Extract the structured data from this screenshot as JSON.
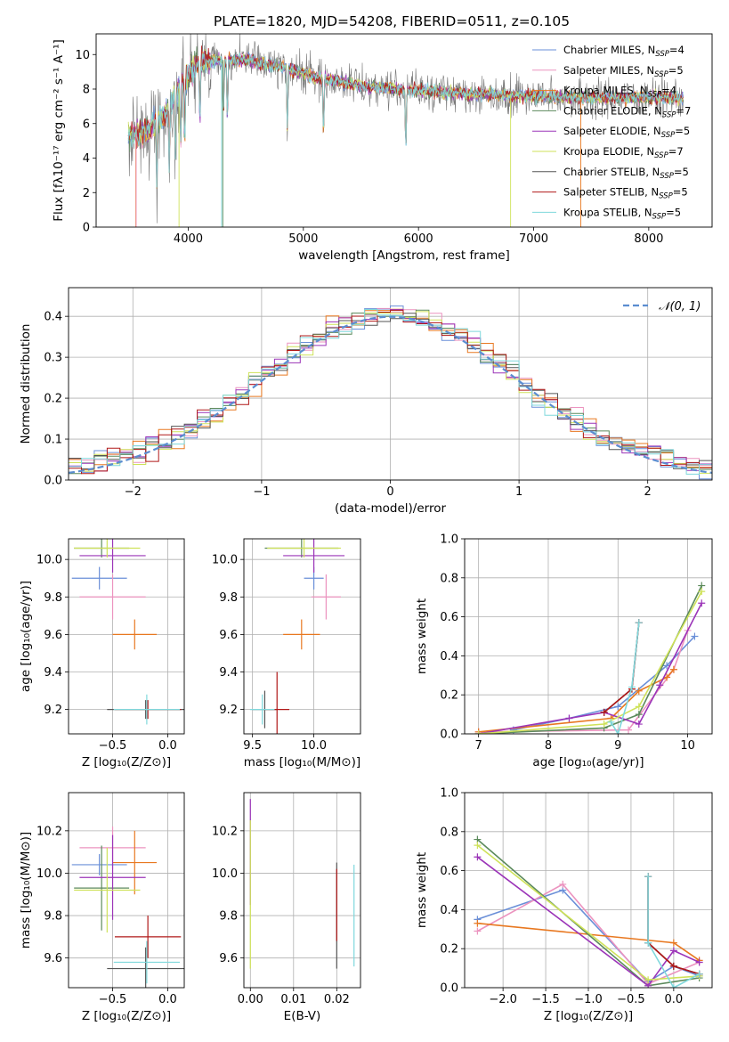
{
  "figure_title": "PLATE=1820, MJD=54208, FIBERID=0511, z=0.105",
  "legend_spectrum": [
    {
      "base": "Chabrier MILES, N",
      "n": "4",
      "color": "#6a8fd8"
    },
    {
      "base": "Salpeter MILES, N",
      "n": "5",
      "color": "#ec93bf"
    },
    {
      "base": "Kroupa MILES, N",
      "n": "4",
      "color": "#e87820"
    },
    {
      "base": "Chabrier ELODIE, N",
      "n": "7",
      "color": "#5c8a5c"
    },
    {
      "base": "Salpeter ELODIE, N",
      "n": "5",
      "color": "#9b34b8"
    },
    {
      "base": "Kroupa ELODIE, N",
      "n": "7",
      "color": "#cfe25a"
    },
    {
      "base": "Chabrier STELIB, N",
      "n": "5",
      "color": "#555555"
    },
    {
      "base": "Salpeter STELIB, N",
      "n": "5",
      "color": "#b01818"
    },
    {
      "base": "Kroupa STELIB, N",
      "n": "5",
      "color": "#7fd8dc"
    }
  ],
  "legend_sub": "SSP",
  "normal_label": "𝒩(0, 1)",
  "chart_data": [
    {
      "id": "spectrum",
      "type": "line",
      "title": "PLATE=1820, MJD=54208, FIBERID=0511, z=0.105",
      "xlabel": "wavelength [Angstrom, rest frame]",
      "ylabel": "Flux [fλ10⁻¹⁷ erg cm⁻² s⁻¹ A⁻¹]",
      "xlim": [
        3200,
        8550
      ],
      "ylim": [
        0,
        11.2
      ],
      "xticks": [
        4000,
        5000,
        6000,
        7000,
        8000
      ],
      "yticks": [
        0,
        2,
        4,
        6,
        8,
        10
      ],
      "grid": false,
      "legend": "top-right",
      "continuum": {
        "x": [
          3500,
          3650,
          3800,
          3950,
          4100,
          4300,
          4500,
          4800,
          5100,
          5500,
          6000,
          6500,
          7000,
          7500,
          8000,
          8300
        ],
        "y": [
          5.3,
          5.6,
          6.5,
          8.4,
          9.6,
          9.7,
          9.7,
          9.3,
          8.7,
          8.2,
          7.9,
          7.7,
          7.6,
          7.5,
          7.5,
          7.5
        ]
      }
    },
    {
      "id": "residuals",
      "type": "step",
      "xlabel": "(data-model)/error",
      "ylabel": "Normed distribution",
      "xlim": [
        -2.5,
        2.5
      ],
      "ylim": [
        0,
        0.47
      ],
      "xticks": [
        -2,
        -1,
        0,
        1,
        2
      ],
      "yticks": [
        0.0,
        0.1,
        0.2,
        0.3,
        0.4
      ],
      "grid": true,
      "legend": "top-right",
      "bin_width": 0.1
    },
    {
      "id": "age_vs_Z",
      "type": "errorbar",
      "xlabel": "Z [log₁₀(Z/Z⊙)]",
      "ylabel": "age  [log₁₀(age/yr)]",
      "xlim": [
        -0.9,
        0.15
      ],
      "ylim": [
        9.07,
        10.11
      ],
      "xticks": [
        -0.5,
        0.0
      ],
      "yticks": [
        9.2,
        9.4,
        9.6,
        9.8,
        10.0
      ],
      "grid": true,
      "points": [
        {
          "x": -0.62,
          "xerr": 0.25,
          "y": 9.9,
          "yerr": 0.06,
          "s": 0
        },
        {
          "x": -0.5,
          "xerr": 0.3,
          "y": 9.8,
          "yerr": 0.12,
          "s": 1
        },
        {
          "x": -0.3,
          "xerr": 0.2,
          "y": 9.6,
          "yerr": 0.08,
          "s": 2
        },
        {
          "x": -0.6,
          "xerr": 0.25,
          "y": 10.06,
          "yerr": 0.05,
          "s": 3
        },
        {
          "x": -0.5,
          "xerr": 0.3,
          "y": 10.02,
          "yerr": 0.09,
          "s": 4
        },
        {
          "x": -0.55,
          "xerr": 0.3,
          "y": 10.06,
          "yerr": 0.05,
          "s": 5
        },
        {
          "x": -0.2,
          "xerr": 0.35,
          "y": 9.2,
          "yerr": 0.05,
          "s": 6
        },
        {
          "x": -0.18,
          "xerr": 0.3,
          "y": 9.2,
          "yerr": 0.05,
          "s": 7
        },
        {
          "x": -0.19,
          "xerr": 0.3,
          "y": 9.2,
          "yerr": 0.08,
          "s": 8
        }
      ]
    },
    {
      "id": "age_vs_mass",
      "type": "errorbar",
      "xlabel": "mass [log₁₀(M/M⊙)]",
      "ylabel": "",
      "xlim": [
        9.43,
        10.38
      ],
      "ylim": [
        9.07,
        10.11
      ],
      "xticks": [
        9.5,
        10.0
      ],
      "yticks": [
        9.2,
        9.4,
        9.6,
        9.8,
        10.0
      ],
      "grid": true,
      "points": [
        {
          "x": 10.0,
          "xerr": 0.08,
          "y": 9.9,
          "yerr": 0.06,
          "s": 0
        },
        {
          "x": 10.1,
          "xerr": 0.12,
          "y": 9.8,
          "yerr": 0.12,
          "s": 1
        },
        {
          "x": 9.9,
          "xerr": 0.15,
          "y": 9.6,
          "yerr": 0.08,
          "s": 2
        },
        {
          "x": 9.9,
          "xerr": 0.3,
          "y": 10.06,
          "yerr": 0.05,
          "s": 3
        },
        {
          "x": 10.0,
          "xerr": 0.25,
          "y": 10.02,
          "yerr": 0.09,
          "s": 4
        },
        {
          "x": 9.92,
          "xerr": 0.3,
          "y": 10.06,
          "yerr": 0.05,
          "s": 5
        },
        {
          "x": 9.6,
          "xerr": 0.1,
          "y": 9.2,
          "yerr": 0.1,
          "s": 6
        },
        {
          "x": 9.7,
          "xerr": 0.1,
          "y": 9.2,
          "yerr": 0.2,
          "s": 7
        },
        {
          "x": 9.58,
          "xerr": 0.1,
          "y": 9.2,
          "yerr": 0.08,
          "s": 8
        }
      ]
    },
    {
      "id": "weight_vs_age",
      "type": "line",
      "xlabel": "age  [log₁₀(age/yr)]",
      "ylabel": "mass weight",
      "xlim": [
        6.8,
        10.35
      ],
      "ylim": [
        0,
        1.0
      ],
      "xticks": [
        7,
        8,
        9,
        10
      ],
      "yticks": [
        0.0,
        0.2,
        0.4,
        0.6,
        0.8,
        1.0
      ],
      "grid": true,
      "series": [
        {
          "s": 0,
          "x": [
            7.5,
            8.3,
            9.0,
            9.7,
            10.1
          ],
          "y": [
            0.02,
            0.08,
            0.14,
            0.35,
            0.5
          ]
        },
        {
          "s": 1,
          "x": [
            7.0,
            9.15,
            9.8,
            10.0
          ],
          "y": [
            0.01,
            0.02,
            0.33,
            0.53
          ]
        },
        {
          "s": 2,
          "x": [
            7.0,
            8.9,
            9.3,
            9.7,
            9.8
          ],
          "y": [
            0.01,
            0.08,
            0.22,
            0.29,
            0.33
          ]
        },
        {
          "s": 3,
          "x": [
            7.0,
            8.8,
            9.3,
            10.2
          ],
          "y": [
            0.0,
            0.03,
            0.1,
            0.76
          ]
        },
        {
          "s": 4,
          "x": [
            7.0,
            8.3,
            8.8,
            9.3,
            9.6,
            10.2
          ],
          "y": [
            0.0,
            0.08,
            0.11,
            0.05,
            0.25,
            0.67
          ]
        },
        {
          "s": 5,
          "x": [
            7.0,
            8.8,
            9.3,
            10.2
          ],
          "y": [
            0.0,
            0.05,
            0.14,
            0.73
          ]
        },
        {
          "s": 6,
          "x": [
            8.8,
            9.2,
            9.3
          ],
          "y": [
            0.11,
            0.23,
            0.57
          ]
        },
        {
          "s": 7,
          "x": [
            8.8,
            9.2,
            9.3
          ],
          "y": [
            0.11,
            0.23,
            0.57
          ]
        },
        {
          "s": 8,
          "x": [
            8.9,
            9.0,
            9.2,
            9.3
          ],
          "y": [
            0.06,
            0.0,
            0.24,
            0.57
          ]
        }
      ]
    },
    {
      "id": "mass_vs_Z",
      "type": "errorbar",
      "xlabel": "Z [log₁₀(Z/Z⊙)]",
      "ylabel": "mass [log₁₀(M/M⊙)]",
      "xlim": [
        -0.9,
        0.15
      ],
      "ylim": [
        9.46,
        10.38
      ],
      "xticks": [
        -0.5,
        0.0
      ],
      "yticks": [
        9.6,
        9.8,
        10.0,
        10.2
      ],
      "grid": true,
      "points": [
        {
          "x": -0.62,
          "xerr": 0.25,
          "y": 10.04,
          "yerr": 0.05,
          "s": 0
        },
        {
          "x": -0.5,
          "xerr": 0.3,
          "y": 10.12,
          "yerr": 0.1,
          "s": 1
        },
        {
          "x": -0.3,
          "xerr": 0.2,
          "y": 10.05,
          "yerr": 0.15,
          "s": 2
        },
        {
          "x": -0.6,
          "xerr": 0.25,
          "y": 9.93,
          "yerr": 0.2,
          "s": 3
        },
        {
          "x": -0.5,
          "xerr": 0.3,
          "y": 9.98,
          "yerr": 0.2,
          "s": 4
        },
        {
          "x": -0.55,
          "xerr": 0.3,
          "y": 9.92,
          "yerr": 0.2,
          "s": 5
        },
        {
          "x": -0.2,
          "xerr": 0.35,
          "y": 9.55,
          "yerr": 0.1,
          "s": 6
        },
        {
          "x": -0.18,
          "xerr": 0.3,
          "y": 9.7,
          "yerr": 0.1,
          "s": 7
        },
        {
          "x": -0.19,
          "xerr": 0.3,
          "y": 9.58,
          "yerr": 0.1,
          "s": 8
        }
      ]
    },
    {
      "id": "mass_vs_ebv",
      "type": "errorbar",
      "xlabel": "E(B-V)",
      "ylabel": "",
      "xlim": [
        -0.0015,
        0.0255
      ],
      "ylim": [
        9.46,
        10.38
      ],
      "xticks": [
        0.0,
        0.01,
        0.02
      ],
      "yticks": [
        9.6,
        9.8,
        10.0,
        10.2
      ],
      "grid": true,
      "points": [
        {
          "x": 0.0,
          "xerr": 0,
          "y": 10.1,
          "yerr": 0.25,
          "s": 4
        },
        {
          "x": 0.0,
          "xerr": 0,
          "y": 9.9,
          "yerr": 0.35,
          "s": 5
        },
        {
          "x": 0.02,
          "xerr": 0,
          "y": 9.8,
          "yerr": 0.25,
          "s": 6
        },
        {
          "x": 0.02,
          "xerr": 0,
          "y": 9.85,
          "yerr": 0.17,
          "s": 7
        },
        {
          "x": 0.024,
          "xerr": 0,
          "y": 9.8,
          "yerr": 0.24,
          "s": 8
        }
      ]
    },
    {
      "id": "weight_vs_Z",
      "type": "line",
      "xlabel": "Z [log₁₀(Z/Z⊙)]",
      "ylabel": "mass weight",
      "xlim": [
        -2.45,
        0.45
      ],
      "ylim": [
        0,
        1.0
      ],
      "xticks": [
        -2.0,
        -1.5,
        -1.0,
        -0.5,
        0.0
      ],
      "yticks": [
        0.0,
        0.2,
        0.4,
        0.6,
        0.8,
        1.0
      ],
      "grid": true,
      "series": [
        {
          "s": 0,
          "x": [
            -2.3,
            -1.3,
            -0.3,
            0.0,
            0.3
          ],
          "y": [
            0.35,
            0.5,
            0.03,
            0.11,
            0.06
          ]
        },
        {
          "s": 1,
          "x": [
            -2.3,
            -1.3,
            -0.3,
            0.3
          ],
          "y": [
            0.29,
            0.53,
            0.02,
            0.13
          ]
        },
        {
          "s": 2,
          "x": [
            -2.3,
            0.0,
            0.3
          ],
          "y": [
            0.33,
            0.23,
            0.14
          ]
        },
        {
          "s": 3,
          "x": [
            -2.3,
            -0.3,
            0.3
          ],
          "y": [
            0.76,
            0.01,
            0.05
          ]
        },
        {
          "s": 4,
          "x": [
            -2.3,
            -0.3,
            0.0,
            0.3
          ],
          "y": [
            0.67,
            0.01,
            0.19,
            0.13
          ]
        },
        {
          "s": 5,
          "x": [
            -2.3,
            -0.3,
            0.3
          ],
          "y": [
            0.73,
            0.04,
            0.06
          ]
        },
        {
          "s": 6,
          "x": [
            -0.3,
            -0.3,
            0.0,
            0.3
          ],
          "y": [
            0.57,
            0.23,
            0.11,
            0.07
          ]
        },
        {
          "s": 7,
          "x": [
            -0.3,
            -0.3,
            0.0,
            0.3
          ],
          "y": [
            0.57,
            0.23,
            0.11,
            0.07
          ]
        },
        {
          "s": 8,
          "x": [
            -0.3,
            -0.3,
            0.0,
            0.3
          ],
          "y": [
            0.57,
            0.23,
            0.0,
            0.07
          ]
        }
      ]
    }
  ]
}
